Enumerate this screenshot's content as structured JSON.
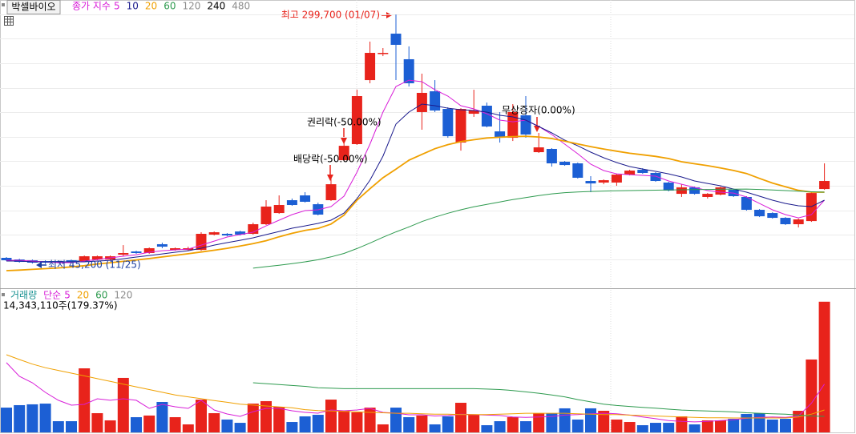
{
  "chart_data": [
    {
      "type": "candlestick",
      "title": "박셀바이오",
      "ma_label": "종가 지수",
      "up_color": "#e8231b",
      "down_color": "#1c5fd4",
      "ylim": [
        22500,
        308000
      ],
      "yticks": [
        50000,
        75000,
        100000,
        125000,
        150000,
        175000,
        200000,
        225000,
        250000,
        275000,
        300000
      ],
      "grid": true,
      "open": [
        51500,
        49800,
        49000,
        48200,
        48200,
        49000,
        48200,
        49800,
        49800,
        54700,
        58000,
        56400,
        65400,
        59600,
        59600,
        59600,
        75200,
        76000,
        78400,
        76000,
        85800,
        97200,
        110300,
        115200,
        106200,
        110300,
        151100,
        167500,
        232800,
        259800,
        280200,
        254100,
        200200,
        221400,
        203400,
        169100,
        198500,
        206700,
        180500,
        174000,
        196900,
        159300,
        162600,
        149500,
        147900,
        129900,
        128300,
        128300,
        136400,
        141300,
        138100,
        128300,
        116800,
        123400,
        113600,
        116000,
        120900,
        113600,
        100500,
        97200,
        92300,
        85800,
        89000,
        121700
      ],
      "high": [
        52300,
        50600,
        49800,
        49000,
        49000,
        49800,
        53900,
        53900,
        53900,
        64500,
        58800,
        62100,
        67000,
        62100,
        62900,
        77600,
        78400,
        76800,
        79200,
        87400,
        110300,
        115200,
        112000,
        118500,
        107800,
        133200,
        169100,
        223000,
        272100,
        265500,
        299700,
        267200,
        239400,
        232800,
        205100,
        204200,
        223000,
        209900,
        200200,
        208300,
        216500,
        178900,
        163400,
        150300,
        148700,
        134800,
        131500,
        137200,
        141300,
        142900,
        138900,
        129100,
        126600,
        124200,
        117600,
        124200,
        121700,
        114400,
        101300,
        98000,
        93100,
        91500,
        118500,
        147900
      ],
      "low": [
        48200,
        46600,
        45700,
        45200,
        45700,
        46600,
        47400,
        49000,
        49000,
        53100,
        55600,
        55600,
        61300,
        58800,
        58800,
        58800,
        74300,
        73500,
        74300,
        75200,
        85000,
        96400,
        104600,
        107900,
        94800,
        109500,
        150300,
        166700,
        229600,
        257300,
        232800,
        226300,
        182200,
        200200,
        174000,
        160900,
        195300,
        184600,
        169100,
        170700,
        174000,
        158500,
        144600,
        145400,
        132400,
        118500,
        126600,
        125000,
        135600,
        137200,
        129100,
        119300,
        113600,
        116000,
        112000,
        115200,
        113600,
        99700,
        93100,
        91500,
        85000,
        82500,
        88200,
        120900
      ],
      "close": [
        49000,
        47400,
        46600,
        46600,
        46600,
        47400,
        53100,
        53100,
        53100,
        56400,
        56400,
        61300,
        62900,
        61300,
        61300,
        76000,
        77600,
        74300,
        75200,
        85800,
        103800,
        105400,
        105400,
        108700,
        95600,
        126600,
        165800,
        216500,
        260600,
        260600,
        268800,
        229600,
        219800,
        201800,
        175600,
        203400,
        201800,
        185500,
        174000,
        200200,
        177300,
        164200,
        147900,
        146200,
        133200,
        127400,
        130700,
        136400,
        140500,
        138100,
        129900,
        120100,
        123400,
        116800,
        116800,
        123400,
        114400,
        100500,
        93900,
        92300,
        85800,
        90700,
        117600,
        129900
      ],
      "series": [
        {
          "name": "5",
          "color": "#d81ed8",
          "values": [
            49000,
            49000,
            48200,
            47400,
            46600,
            46600,
            48200,
            49800,
            51500,
            53100,
            54700,
            57200,
            58800,
            59600,
            60400,
            64500,
            68600,
            72700,
            75200,
            77600,
            84100,
            89900,
            95600,
            99700,
            100500,
            103800,
            114400,
            138900,
            167500,
            200200,
            226300,
            232800,
            231200,
            223000,
            216500,
            206700,
            203400,
            198500,
            192000,
            190300,
            192000,
            185500,
            177300,
            167500,
            157700,
            147100,
            140500,
            137200,
            136400,
            135600,
            134800,
            129900,
            126600,
            123400,
            120100,
            118500,
            117600,
            113600,
            107000,
            100500,
            95600,
            92300,
            95600,
            110300
          ]
        },
        {
          "name": "10",
          "color": "#1a1a8c",
          "values": [
            48200,
            48200,
            47400,
            47400,
            47400,
            47400,
            47400,
            48200,
            49000,
            50600,
            52300,
            53900,
            55500,
            57200,
            58800,
            61300,
            64500,
            67000,
            69400,
            71900,
            75200,
            78400,
            81700,
            84100,
            86600,
            89900,
            97200,
            111900,
            130700,
            155200,
            187900,
            200200,
            208300,
            206700,
            204200,
            202600,
            201800,
            200200,
            196900,
            195300,
            192000,
            185500,
            178900,
            171600,
            165800,
            159300,
            153600,
            148700,
            144600,
            142100,
            139700,
            137200,
            134000,
            129900,
            127400,
            125000,
            121700,
            118500,
            114400,
            110300,
            107000,
            104600,
            103800,
            110300
          ]
        },
        {
          "name": "20",
          "color": "#f0a000",
          "values": [
            38400,
            39000,
            39700,
            40500,
            41200,
            42300,
            43500,
            45200,
            46500,
            47900,
            49300,
            50800,
            52400,
            54000,
            55700,
            57500,
            59300,
            61200,
            63500,
            66000,
            69000,
            73000,
            76500,
            79500,
            81500,
            86000,
            95000,
            110300,
            122000,
            133200,
            142000,
            151100,
            157000,
            162800,
            167000,
            170000,
            172000,
            173800,
            174500,
            175200,
            175600,
            174800,
            173200,
            170500,
            167700,
            165000,
            162500,
            160300,
            158200,
            156600,
            155000,
            152800,
            149500,
            147500,
            145500,
            143200,
            140600,
            137500,
            132500,
            127800,
            124000,
            120400,
            118500,
            118500
          ]
        },
        {
          "name": "60",
          "color": "#2d9a4e",
          "values": [
            null,
            null,
            null,
            null,
            null,
            null,
            null,
            null,
            null,
            null,
            null,
            null,
            null,
            null,
            null,
            null,
            null,
            null,
            null,
            41000,
            42500,
            44000,
            45600,
            47400,
            49500,
            52500,
            56000,
            61000,
            66500,
            72500,
            78000,
            83000,
            88500,
            93000,
            97000,
            100500,
            103500,
            106000,
            108500,
            111000,
            113000,
            115000,
            116800,
            118000,
            118700,
            119200,
            119600,
            119900,
            120100,
            120300,
            120500,
            120700,
            120900,
            121100,
            121300,
            121500,
            121600,
            121700,
            121300,
            120800,
            120100,
            119500,
            118900,
            118500
          ]
        },
        {
          "name": "120",
          "color": "#8c8c8c"
        },
        {
          "name": "240",
          "color": "#000000"
        },
        {
          "name": "480",
          "color": "#8c8c8c"
        }
      ],
      "annotations": [
        {
          "text": "최고 299,700 (01/07)",
          "color": "#e8231b"
        },
        {
          "text": "최저 45,200 (11/25)",
          "color": "#1c3fa0"
        },
        {
          "text": "권리락(-50.00%)",
          "color": "#000000"
        },
        {
          "text": "배당락(-50.00%)",
          "color": "#000000"
        },
        {
          "text": "무상증자(0.00%)",
          "color": "#000000"
        }
      ]
    },
    {
      "type": "bar",
      "title": "거래량",
      "title_color": "#159090",
      "ma_label": "단순",
      "summary": "14,343,110주(179.37%)",
      "ylim": [
        0,
        14500000
      ],
      "values": [
        2720000,
        2990000,
        3080000,
        3160000,
        1230000,
        1230000,
        7030000,
        2110000,
        1320000,
        5980000,
        1670000,
        1850000,
        3340000,
        1670000,
        880000,
        3600000,
        2110000,
        1410000,
        1050000,
        3160000,
        3430000,
        2810000,
        1140000,
        1760000,
        1930000,
        3600000,
        2370000,
        2200000,
        2720000,
        880000,
        2720000,
        1670000,
        1850000,
        880000,
        1760000,
        3250000,
        1930000,
        790000,
        1230000,
        1670000,
        1230000,
        2110000,
        2110000,
        2640000,
        1410000,
        2640000,
        2370000,
        1410000,
        1140000,
        790000,
        1050000,
        1050000,
        1760000,
        880000,
        1320000,
        1320000,
        1490000,
        2020000,
        2110000,
        1410000,
        1490000,
        2370000,
        8000000,
        14343110
      ],
      "series": [
        {
          "name": "5",
          "color": "#d81ed8",
          "values": [
            7650000,
            6150000,
            5450000,
            4390000,
            3520000,
            2990000,
            3080000,
            3690000,
            3520000,
            3690000,
            3520000,
            2640000,
            3080000,
            2810000,
            2640000,
            3520000,
            2460000,
            2020000,
            1760000,
            2280000,
            2640000,
            2640000,
            2370000,
            2200000,
            2110000,
            2460000,
            2370000,
            2460000,
            2640000,
            2200000,
            2110000,
            1930000,
            1930000,
            1800000,
            1850000,
            2000000,
            1950000,
            1900000,
            1850000,
            1700000,
            1650000,
            1700000,
            1750000,
            1900000,
            1950000,
            2050000,
            2100000,
            2050000,
            1900000,
            1700000,
            1500000,
            1300000,
            1200000,
            1150000,
            1200000,
            1300000,
            1400000,
            1550000,
            1650000,
            1700000,
            1650000,
            1800000,
            3200000,
            5300000
          ]
        },
        {
          "name": "20",
          "color": "#f0a000",
          "values": [
            8520000,
            8000000,
            7500000,
            7100000,
            6800000,
            6500000,
            6200000,
            5900000,
            5600000,
            5300000,
            5000000,
            4700000,
            4400000,
            4100000,
            3900000,
            3700000,
            3500000,
            3300000,
            3100000,
            3000000,
            2900000,
            2800000,
            2700000,
            2500000,
            2400000,
            2350000,
            2300000,
            2250000,
            2200000,
            2150000,
            2100000,
            2100000,
            2050000,
            2000000,
            2000000,
            1950000,
            1950000,
            1950000,
            2000000,
            2050000,
            2100000,
            2100000,
            2100000,
            2100000,
            2050000,
            2000000,
            1950000,
            1950000,
            1900000,
            1850000,
            1800000,
            1750000,
            1700000,
            1650000,
            1600000,
            1600000,
            1580000,
            1580000,
            1580000,
            1580000,
            1580000,
            1700000,
            2000000,
            2460000
          ]
        },
        {
          "name": "60",
          "color": "#2d9a4e",
          "values": [
            null,
            null,
            null,
            null,
            null,
            null,
            null,
            null,
            null,
            null,
            null,
            null,
            null,
            null,
            null,
            null,
            null,
            null,
            null,
            5450000,
            5350000,
            5250000,
            5150000,
            5050000,
            4900000,
            4850000,
            4800000,
            4800000,
            4800000,
            4800000,
            4800000,
            4800000,
            4800000,
            4800000,
            4800000,
            4800000,
            4800000,
            4750000,
            4700000,
            4600000,
            4450000,
            4300000,
            4100000,
            3900000,
            3600000,
            3350000,
            3100000,
            2950000,
            2850000,
            2750000,
            2650000,
            2550000,
            2450000,
            2400000,
            2350000,
            2300000,
            2250000,
            2150000,
            2100000,
            2050000,
            2000000,
            1900000,
            1800000,
            1760000
          ]
        },
        {
          "name": "120",
          "color": "#8c8c8c"
        }
      ]
    }
  ]
}
